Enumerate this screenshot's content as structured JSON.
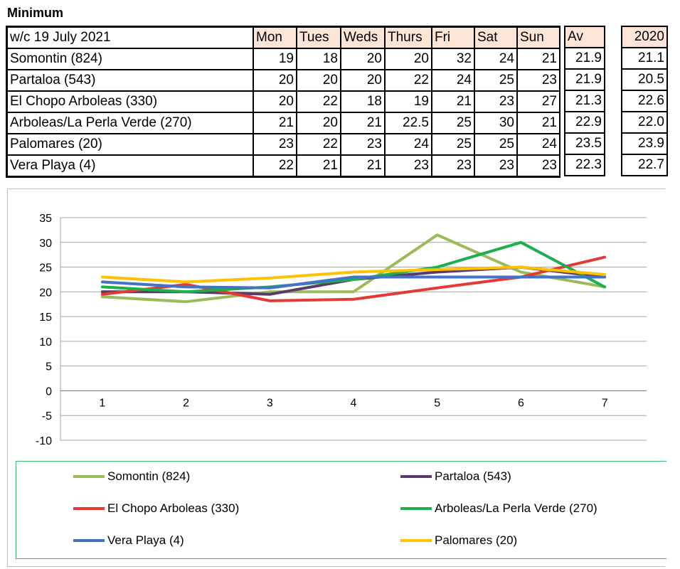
{
  "title": "Minimum",
  "table": {
    "week_label": "w/c 19 July 2021",
    "days": [
      "Mon",
      "Tues",
      "Weds",
      "Thurs",
      "Fri",
      "Sat",
      "Sun"
    ],
    "av_header": "Av",
    "year_header": "2020",
    "rows": [
      {
        "name": "Somontin (824)",
        "values": [
          "19",
          "18",
          "20",
          "20",
          "32",
          "24",
          "21"
        ],
        "av": "21.9",
        "y2020": "21.1"
      },
      {
        "name": "Partaloa (543)",
        "values": [
          "20",
          "20",
          "20",
          "22",
          "24",
          "25",
          "23"
        ],
        "av": "21.9",
        "y2020": "20.5"
      },
      {
        "name": "El Chopo Arboleas (330)",
        "values": [
          "20",
          "22",
          "18",
          "19",
          "21",
          "23",
          "27"
        ],
        "av": "21.3",
        "y2020": "22.6"
      },
      {
        "name": "Arboleas/La Perla Verde (270)",
        "values": [
          "21",
          "20",
          "21",
          "22.5",
          "25",
          "30",
          "21"
        ],
        "av": "22.9",
        "y2020": "22.0"
      },
      {
        "name": "Palomares (20)",
        "values": [
          "23",
          "22",
          "23",
          "24",
          "25",
          "25",
          "24"
        ],
        "av": "23.5",
        "y2020": "23.9"
      },
      {
        "name": "Vera Playa (4)",
        "values": [
          "22",
          "21",
          "21",
          "23",
          "23",
          "23",
          "23"
        ],
        "av": "22.3",
        "y2020": "22.7"
      }
    ]
  },
  "chart_data": {
    "type": "line",
    "title": "",
    "xlabel": "",
    "ylabel": "",
    "categories": [
      "1",
      "2",
      "3",
      "4",
      "5",
      "6",
      "7"
    ],
    "ylim": [
      -10,
      35
    ],
    "yticks": [
      35,
      30,
      25,
      20,
      15,
      10,
      5,
      0,
      -5,
      -10
    ],
    "grid": true,
    "legend_position": "bottom",
    "series": [
      {
        "name": "Somontin (824)",
        "color": "#9bbb59",
        "values": [
          19,
          18,
          20,
          20,
          31.5,
          24,
          21
        ]
      },
      {
        "name": "Partaloa (543)",
        "color": "#5b3a6e",
        "values": [
          20,
          20,
          19.5,
          22.5,
          24,
          25,
          23
        ]
      },
      {
        "name": "El Chopo Arboleas (330)",
        "color": "#e53935",
        "values": [
          19.5,
          21.5,
          18.2,
          18.5,
          20.8,
          23,
          27
        ]
      },
      {
        "name": "Arboleas/La Perla Verde (270)",
        "color": "#1bb04b",
        "values": [
          21,
          20,
          21,
          22.5,
          25,
          30,
          21
        ]
      },
      {
        "name": "Vera Playa (4)",
        "color": "#4472c4",
        "values": [
          22,
          21,
          20.8,
          23,
          23,
          23,
          23
        ]
      },
      {
        "name": "Palomares (20)",
        "color": "#ffc000",
        "values": [
          23,
          22,
          22.8,
          24,
          24.5,
          25,
          23.5
        ]
      }
    ]
  }
}
